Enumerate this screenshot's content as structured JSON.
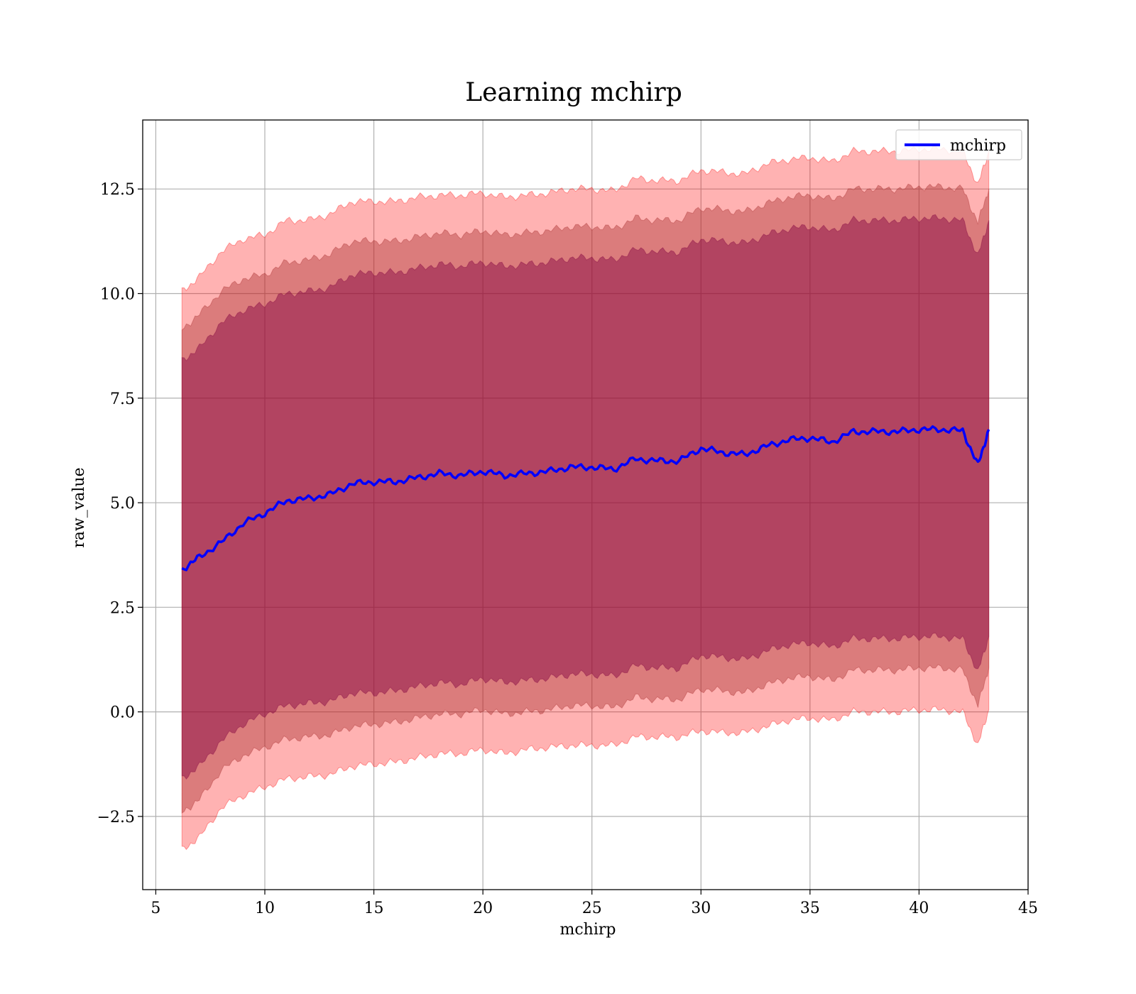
{
  "chart_data": {
    "type": "line",
    "title": "Learning mchirp",
    "xlabel": "mchirp",
    "ylabel": "raw_value",
    "xlim": [
      4.4,
      45
    ],
    "ylim": [
      -4.25,
      14.15
    ],
    "xticks": [
      5,
      10,
      15,
      20,
      25,
      30,
      35,
      40,
      45
    ],
    "xtick_labels": [
      "5",
      "10",
      "15",
      "20",
      "25",
      "30",
      "35",
      "40",
      "45"
    ],
    "yticks": [
      -2.5,
      0.0,
      2.5,
      5.0,
      7.5,
      10.0,
      12.5
    ],
    "ytick_labels": [
      "−2.5",
      "0.0",
      "2.5",
      "5.0",
      "7.5",
      "10.0",
      "12.5"
    ],
    "grid": true,
    "legend": {
      "position": "top-right",
      "entries": [
        "mchirp"
      ]
    },
    "colors": {
      "line": "#0000ff",
      "band_outer": "#ff0000",
      "band_middle": "#a52a2a",
      "band_inner": "#800040"
    },
    "series": [
      {
        "name": "mchirp",
        "x": [
          6.2,
          7,
          8,
          9,
          10,
          11,
          12,
          13,
          14,
          15,
          16,
          17,
          18,
          19,
          20,
          21,
          22,
          23,
          24,
          25,
          26,
          27,
          28,
          29,
          30,
          31,
          32,
          33,
          34,
          35,
          36,
          37,
          38,
          39,
          40,
          41,
          42,
          42.7,
          43.2
        ],
        "y": [
          3.4,
          3.7,
          4.05,
          4.5,
          4.75,
          5.05,
          5.1,
          5.2,
          5.45,
          5.5,
          5.5,
          5.6,
          5.7,
          5.65,
          5.75,
          5.65,
          5.7,
          5.75,
          5.85,
          5.85,
          5.8,
          6.05,
          6.0,
          6.0,
          6.3,
          6.2,
          6.15,
          6.35,
          6.5,
          6.55,
          6.45,
          6.7,
          6.7,
          6.7,
          6.75,
          6.75,
          6.72,
          5.9,
          6.75
        ]
      }
    ],
    "bands": [
      {
        "lower": [
          -3.3,
          -3.0,
          -2.3,
          -2.0,
          -1.8,
          -1.6,
          -1.55,
          -1.5,
          -1.3,
          -1.25,
          -1.2,
          -1.1,
          -1.0,
          -1.0,
          -0.9,
          -1.0,
          -0.9,
          -0.85,
          -0.8,
          -0.8,
          -0.8,
          -0.6,
          -0.6,
          -0.6,
          -0.45,
          -0.5,
          -0.5,
          -0.35,
          -0.2,
          -0.15,
          -0.2,
          0.0,
          0.0,
          0.0,
          0.05,
          0.05,
          0.0,
          -0.8,
          0.05
        ],
        "upper": [
          10.05,
          10.4,
          11.0,
          11.3,
          11.4,
          11.75,
          11.75,
          11.9,
          12.2,
          12.2,
          12.2,
          12.3,
          12.35,
          12.35,
          12.4,
          12.3,
          12.35,
          12.4,
          12.5,
          12.5,
          12.45,
          12.75,
          12.7,
          12.7,
          12.95,
          12.9,
          12.85,
          13.1,
          13.2,
          13.25,
          13.15,
          13.4,
          13.4,
          13.4,
          13.45,
          13.45,
          13.4,
          12.6,
          13.4
        ]
      },
      {
        "lower": [
          -2.4,
          -2.1,
          -1.4,
          -1.05,
          -0.85,
          -0.65,
          -0.6,
          -0.55,
          -0.35,
          -0.3,
          -0.25,
          -0.15,
          -0.05,
          -0.05,
          0.05,
          -0.05,
          0.0,
          0.05,
          0.15,
          0.15,
          0.1,
          0.35,
          0.3,
          0.3,
          0.55,
          0.5,
          0.45,
          0.65,
          0.8,
          0.85,
          0.75,
          1.0,
          1.0,
          1.0,
          1.05,
          1.05,
          1.0,
          0.15,
          1.05
        ],
        "upper": [
          9.15,
          9.5,
          10.05,
          10.35,
          10.45,
          10.75,
          10.8,
          10.95,
          11.25,
          11.25,
          11.25,
          11.35,
          11.45,
          11.4,
          11.5,
          11.4,
          11.45,
          11.5,
          11.6,
          11.6,
          11.55,
          11.8,
          11.75,
          11.75,
          12.05,
          12.0,
          11.95,
          12.15,
          12.3,
          12.35,
          12.25,
          12.5,
          12.5,
          12.5,
          12.55,
          12.55,
          12.5,
          11.7,
          12.5
        ]
      },
      {
        "lower": [
          -1.6,
          -1.3,
          -0.7,
          -0.3,
          -0.05,
          0.15,
          0.2,
          0.25,
          0.45,
          0.45,
          0.5,
          0.6,
          0.7,
          0.65,
          0.8,
          0.7,
          0.75,
          0.8,
          0.9,
          0.9,
          0.85,
          1.1,
          1.05,
          1.05,
          1.35,
          1.3,
          1.25,
          1.45,
          1.6,
          1.65,
          1.55,
          1.75,
          1.75,
          1.75,
          1.8,
          1.8,
          1.75,
          0.95,
          1.8
        ],
        "upper": [
          8.4,
          8.7,
          9.3,
          9.6,
          9.75,
          10.0,
          10.05,
          10.15,
          10.45,
          10.5,
          10.5,
          10.6,
          10.7,
          10.65,
          10.75,
          10.65,
          10.7,
          10.75,
          10.85,
          10.85,
          10.8,
          11.05,
          11.0,
          11.0,
          11.3,
          11.25,
          11.2,
          11.4,
          11.55,
          11.6,
          11.5,
          11.75,
          11.75,
          11.75,
          11.8,
          11.8,
          11.75,
          10.9,
          11.75
        ]
      }
    ]
  }
}
